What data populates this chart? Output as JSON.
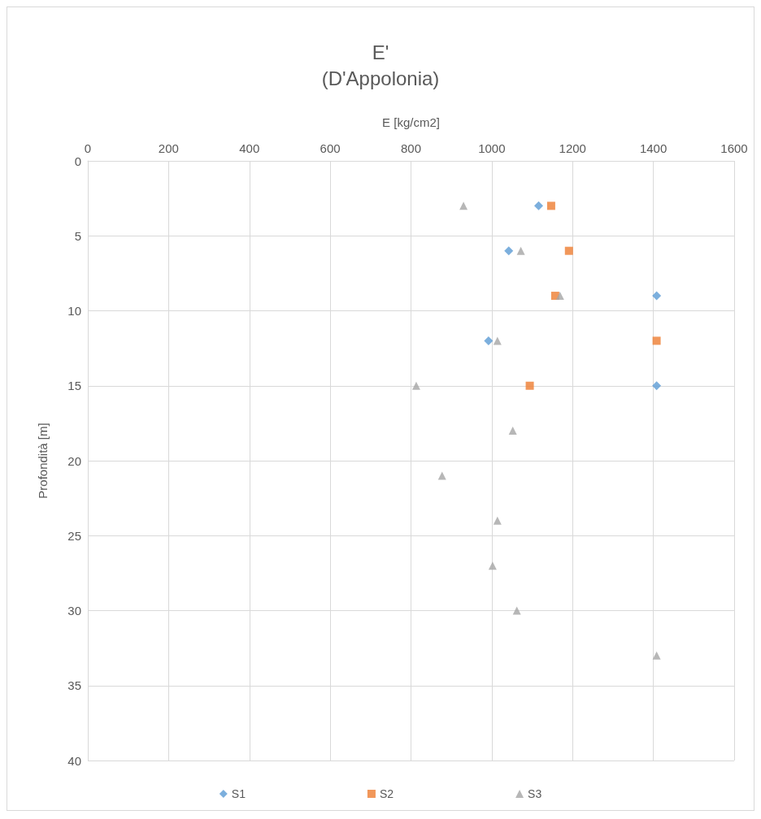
{
  "chart_data": {
    "type": "scatter",
    "title": "E'",
    "subtitle": "(D'Appolonia)",
    "xlabel": "E [kg/cm2]",
    "ylabel": "Profondità [m]",
    "xlim": [
      0,
      1600
    ],
    "xticks": [
      0,
      200,
      400,
      600,
      800,
      1000,
      1200,
      1400,
      1600
    ],
    "ylim": [
      40,
      0
    ],
    "yticks": [
      0,
      5,
      10,
      15,
      20,
      25,
      30,
      35,
      40
    ],
    "grid": true,
    "legend": "bottom",
    "series": [
      {
        "name": "S1",
        "color": "#5b9bd5",
        "marker": "diamond",
        "x": [
          1116,
          1042,
          1408,
          992,
          1408
        ],
        "values": [
          3,
          6,
          9,
          12,
          15
        ]
      },
      {
        "name": "S2",
        "color": "#ed7d31",
        "marker": "square",
        "x": [
          1147,
          1191,
          1157,
          1408,
          1094
        ],
        "values": [
          3,
          6,
          9,
          12,
          15
        ]
      },
      {
        "name": "S3",
        "color": "#a5a5a5",
        "marker": "triangle",
        "x": [
          930,
          1072,
          1169,
          1014,
          813,
          1052,
          877,
          1014,
          1002,
          1062,
          1408
        ],
        "values": [
          3,
          6,
          9,
          12,
          15,
          18,
          21,
          24,
          27,
          30,
          33
        ]
      }
    ]
  }
}
